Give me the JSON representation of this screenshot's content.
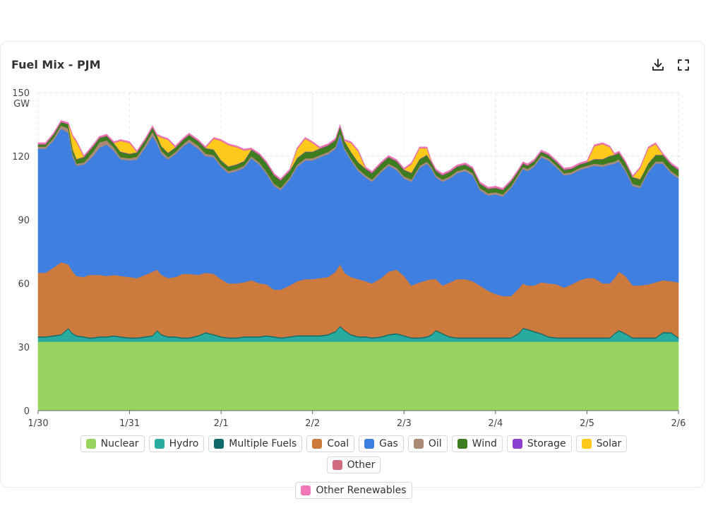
{
  "header": {
    "title": "Fuel Mix - PJM",
    "download_icon": "download-icon",
    "fullscreen_icon": "fullscreen-icon"
  },
  "chart_data": {
    "type": "area",
    "title": "Fuel Mix - PJM",
    "ylabel": "GW",
    "ylim": [
      0,
      150
    ],
    "yticks": [
      0,
      30,
      60,
      90,
      120,
      150
    ],
    "xlim": [
      0,
      7
    ],
    "xticks": [
      {
        "x": 0,
        "label": "1/30"
      },
      {
        "x": 1,
        "label": "1/31"
      },
      {
        "x": 2,
        "label": "2/1"
      },
      {
        "x": 3,
        "label": "2/2"
      },
      {
        "x": 4,
        "label": "2/3"
      },
      {
        "x": 5,
        "label": "2/4"
      },
      {
        "x": 6,
        "label": "2/5"
      },
      {
        "x": 7,
        "label": "2/6"
      }
    ],
    "grid": true,
    "stacked": true,
    "x": [
      0,
      0.08,
      0.17,
      0.25,
      0.33,
      0.38,
      0.42,
      0.5,
      0.55,
      0.6,
      0.67,
      0.75,
      0.83,
      0.9,
      1,
      1.08,
      1.17,
      1.25,
      1.3,
      1.35,
      1.42,
      1.5,
      1.58,
      1.65,
      1.75,
      1.83,
      1.92,
      2,
      2.08,
      2.17,
      2.25,
      2.33,
      2.42,
      2.5,
      2.58,
      2.65,
      2.75,
      2.83,
      2.92,
      3,
      3.08,
      3.17,
      3.25,
      3.3,
      3.35,
      3.42,
      3.5,
      3.58,
      3.65,
      3.75,
      3.83,
      3.92,
      4,
      4.08,
      4.17,
      4.25,
      4.3,
      4.35,
      4.42,
      4.5,
      4.58,
      4.67,
      4.75,
      4.83,
      4.92,
      5,
      5.08,
      5.17,
      5.25,
      5.3,
      5.35,
      5.42,
      5.5,
      5.58,
      5.67,
      5.75,
      5.83,
      5.92,
      6,
      6.08,
      6.17,
      6.25,
      6.3,
      6.35,
      6.42,
      6.5,
      6.58,
      6.67,
      6.75,
      6.83,
      6.92,
      7
    ],
    "series": [
      {
        "name": "Nuclear",
        "color": "#96d35f",
        "values": [
          32.5,
          32.5,
          32.5,
          32.5,
          32.5,
          32.5,
          32.5,
          32.5,
          32.5,
          32.5,
          32.5,
          32.5,
          32.5,
          32.5,
          32.5,
          32.5,
          32.5,
          32.5,
          32.5,
          32.5,
          32.5,
          32.5,
          32.5,
          32.5,
          32.5,
          32.5,
          32.5,
          32.5,
          32.5,
          32.5,
          32.5,
          32.5,
          32.5,
          32.5,
          32.5,
          32.5,
          32.5,
          32.5,
          32.5,
          32.5,
          32.5,
          32.5,
          32.5,
          32.5,
          32.5,
          32.5,
          32.5,
          32.5,
          32.5,
          32.5,
          32.5,
          32.5,
          32.5,
          32.5,
          32.5,
          32.5,
          32.5,
          32.5,
          32.5,
          32.5,
          32.5,
          32.5,
          32.5,
          32.5,
          32.5,
          32.5,
          32.5,
          32.5,
          32.5,
          32.5,
          32.5,
          32.5,
          32.5,
          32.5,
          32.5,
          32.5,
          32.5,
          32.5,
          32.5,
          32.5,
          32.5,
          32.5,
          32.5,
          32.5,
          32.5,
          32.5,
          32.5,
          32.5,
          32.5,
          32.5,
          32.5,
          32.5
        ]
      },
      {
        "name": "Hydro",
        "color": "#2aaba0",
        "values": [
          2,
          2,
          2.5,
          3,
          6,
          3.5,
          2.5,
          2,
          1.5,
          1.5,
          2,
          2,
          2.5,
          2,
          1.5,
          1.5,
          2,
          2.5,
          5,
          3,
          2,
          2,
          1.5,
          1.5,
          2.5,
          4,
          3,
          2,
          1.5,
          1.5,
          2,
          2,
          2,
          2.5,
          2,
          1.5,
          2,
          2.5,
          2.5,
          2.5,
          2.5,
          3,
          4.5,
          7,
          5,
          3,
          2,
          2,
          1.5,
          2,
          3,
          3.5,
          2.5,
          1.5,
          1.5,
          2,
          3,
          5,
          3.5,
          2,
          1.5,
          1.5,
          1.5,
          1.5,
          1.5,
          1.5,
          1.5,
          1.5,
          3.5,
          6,
          5.5,
          4.5,
          3.5,
          2,
          1.5,
          1.5,
          1.5,
          1.5,
          1.5,
          1.5,
          1.5,
          1.5,
          3.5,
          5,
          3.5,
          1.5,
          1.5,
          1.5,
          1.5,
          4,
          4,
          1.5
        ]
      },
      {
        "name": "Multiple Fuels",
        "color": "#0f6b6b",
        "values": [
          0.5,
          0.5,
          0.5,
          0.5,
          0.5,
          0.5,
          0.5,
          0.5,
          0.5,
          0.5,
          0.5,
          0.5,
          0.5,
          0.5,
          0.5,
          0.5,
          0.5,
          0.5,
          0.5,
          0.5,
          0.5,
          0.5,
          0.5,
          0.5,
          0.5,
          0.5,
          0.5,
          0.5,
          0.5,
          0.5,
          0.5,
          0.5,
          0.5,
          0.5,
          0.5,
          0.5,
          0.5,
          0.5,
          0.5,
          0.5,
          0.5,
          0.5,
          0.5,
          0.5,
          0.5,
          0.5,
          0.5,
          0.5,
          0.5,
          0.5,
          0.5,
          0.5,
          0.5,
          0.5,
          0.5,
          0.5,
          0.5,
          0.5,
          0.5,
          0.5,
          0.5,
          0.5,
          0.5,
          0.5,
          0.5,
          0.5,
          0.5,
          0.5,
          0.5,
          0.5,
          0.5,
          0.5,
          0.5,
          0.5,
          0.5,
          0.5,
          0.5,
          0.5,
          0.5,
          0.5,
          0.5,
          0.5,
          0.5,
          0.5,
          0.5,
          0.5,
          0.5,
          0.5,
          0.5,
          0.5,
          0.5,
          0.5
        ]
      },
      {
        "name": "Coal",
        "color": "#cc7a3e",
        "values": [
          30,
          30,
          32,
          34,
          30,
          29,
          28,
          28,
          29.5,
          29.5,
          29,
          28.5,
          28.5,
          28.5,
          28.5,
          28,
          29,
          30,
          28.5,
          28,
          27.5,
          28,
          30,
          30,
          28.5,
          28,
          28.5,
          27,
          25.5,
          25.5,
          25.5,
          26.5,
          25,
          24,
          22,
          22.5,
          24,
          25.5,
          26.5,
          26.5,
          27,
          27,
          28,
          29,
          27,
          27,
          27,
          26,
          25.5,
          27.5,
          29.5,
          30,
          28,
          24.5,
          26,
          26.5,
          26,
          24,
          22.5,
          25.5,
          27.5,
          27.5,
          26.5,
          24.5,
          22,
          20.5,
          19.5,
          19.5,
          21,
          21,
          20.5,
          21.5,
          24,
          25,
          25,
          23.5,
          25,
          27,
          28,
          28,
          25.5,
          25.5,
          26,
          27.5,
          27,
          24.5,
          24.5,
          25,
          26,
          24.5,
          24,
          26
        ]
      },
      {
        "name": "Gas",
        "color": "#3f7fe0",
        "values": [
          58.5,
          58.5,
          60,
          63,
          62,
          54,
          52,
          53,
          54,
          56,
          60,
          62,
          58.5,
          55,
          55,
          56,
          60,
          64,
          59.5,
          57,
          56,
          58,
          60,
          62,
          59.5,
          55,
          55,
          53,
          52,
          53,
          54,
          57.5,
          56,
          52,
          49,
          47,
          50,
          54,
          56,
          56,
          57,
          58,
          58,
          61,
          58,
          55,
          51,
          49,
          48,
          50,
          50,
          47,
          46,
          49,
          54,
          55,
          52,
          48,
          49,
          49,
          50,
          51,
          50,
          45,
          45,
          47,
          47,
          51,
          53,
          54,
          54,
          56,
          59,
          58,
          55,
          53,
          52,
          52,
          52,
          53,
          55,
          56,
          54,
          52,
          49.5,
          47,
          46,
          53,
          56,
          55,
          51,
          49
        ]
      },
      {
        "name": "Oil",
        "color": "#a98a78",
        "values": [
          1,
          1,
          1.2,
          1.5,
          2,
          1.5,
          1,
          1,
          1.5,
          2,
          2.5,
          2,
          1.5,
          1,
          1,
          1.2,
          1.5,
          2,
          1.5,
          1.5,
          1,
          1,
          1,
          1.5,
          1.5,
          1.2,
          1,
          1,
          1,
          1,
          1,
          1,
          1,
          1,
          1,
          1,
          1,
          1,
          1,
          1,
          1,
          1,
          1,
          1,
          1,
          1,
          1,
          1,
          1,
          1,
          1,
          1,
          1,
          1,
          1,
          1,
          1,
          1,
          1,
          1,
          1,
          1,
          1,
          1,
          1,
          1,
          1,
          1,
          1,
          1,
          1,
          1,
          1,
          1,
          1,
          1,
          1,
          1,
          1,
          1,
          1,
          1,
          1,
          1,
          1,
          1,
          1,
          1,
          1,
          1,
          1,
          1
        ]
      },
      {
        "name": "Wind",
        "color": "#3d7d1f",
        "values": [
          1,
          1,
          1.5,
          1.5,
          2,
          2,
          2,
          2.5,
          2.5,
          2.5,
          2,
          2,
          2,
          2.5,
          2,
          2,
          2,
          2,
          2,
          2,
          2,
          2,
          2,
          2,
          2,
          2.5,
          2.5,
          2,
          2,
          2,
          2,
          3,
          3.5,
          4,
          4,
          3.5,
          3,
          3,
          3,
          3,
          3,
          3,
          3,
          3,
          3,
          3,
          3,
          3,
          3,
          3,
          3,
          3,
          3,
          3,
          3,
          3,
          2,
          2,
          2,
          2,
          2,
          2,
          2,
          2,
          2,
          2,
          2,
          2,
          1.5,
          1.5,
          1.5,
          1.5,
          1.5,
          1.5,
          1.5,
          1.5,
          1.5,
          1.5,
          1.5,
          2,
          2.5,
          3,
          3,
          3,
          3,
          3,
          3,
          3,
          3,
          3,
          3,
          3
        ]
      },
      {
        "name": "Storage",
        "color": "#8b3fd0",
        "values": [
          0.2,
          0.2,
          0.2,
          0.2,
          0.2,
          0.2,
          0.2,
          0.2,
          0.2,
          0.2,
          0.2,
          0.2,
          0.2,
          0.2,
          0.2,
          0.2,
          0.2,
          0.2,
          0.2,
          0.2,
          0.2,
          0.2,
          0.2,
          0.2,
          0.2,
          0.2,
          0.2,
          0.2,
          0.2,
          0.2,
          0.2,
          0.2,
          0.2,
          0.2,
          0.2,
          0.2,
          0.2,
          0.2,
          0.2,
          0.2,
          0.2,
          0.2,
          0.2,
          0.2,
          0.2,
          0.2,
          0.2,
          0.2,
          0.2,
          0.2,
          0.2,
          0.2,
          0.2,
          0.2,
          0.2,
          0.2,
          0.2,
          0.2,
          0.2,
          0.2,
          0.2,
          0.2,
          0.2,
          0.2,
          0.2,
          0.2,
          0.2,
          0.2,
          0.2,
          0.2,
          0.2,
          0.2,
          0.2,
          0.2,
          0.2,
          0.2,
          0.2,
          0.2,
          0.2,
          0.2,
          0.2,
          0.2,
          0.2,
          0.2,
          0.2,
          0.2,
          0.2,
          0.2,
          0.2,
          0.2,
          0.2,
          0.2
        ]
      },
      {
        "name": "Solar",
        "color": "#fdca1c",
        "values": [
          0,
          0,
          0,
          0,
          0,
          6,
          8,
          0,
          0,
          0,
          0,
          0,
          0,
          5,
          5,
          0,
          0,
          0,
          0,
          4,
          6,
          0,
          0,
          0,
          0,
          0,
          5,
          9,
          10,
          8,
          5,
          0,
          0,
          0,
          0,
          0,
          0,
          4,
          6,
          4,
          0,
          0,
          0,
          0,
          0,
          4,
          5,
          0,
          0,
          0,
          0,
          0,
          0,
          4,
          5,
          3,
          0,
          0,
          0,
          0,
          0,
          0,
          0,
          0,
          0,
          0,
          0,
          0,
          0,
          0,
          0,
          0,
          0,
          0,
          0,
          0,
          0,
          0,
          0,
          6,
          7,
          4,
          0,
          0,
          0,
          0,
          5,
          7,
          5,
          0,
          0,
          0
        ]
      },
      {
        "name": "Other",
        "color": "#d06a7e",
        "values": [
          0.2,
          0.2,
          0.2,
          0.2,
          0.2,
          0.2,
          0.2,
          0.2,
          0.2,
          0.2,
          0.2,
          0.2,
          0.2,
          0.2,
          0.2,
          0.2,
          0.2,
          0.2,
          0.2,
          0.2,
          0.2,
          0.2,
          0.2,
          0.2,
          0.2,
          0.2,
          0.2,
          0.2,
          0.2,
          0.2,
          0.2,
          0.2,
          0.2,
          0.2,
          0.2,
          0.2,
          0.2,
          0.2,
          0.2,
          0.2,
          0.2,
          0.2,
          0.2,
          0.2,
          0.2,
          0.2,
          0.2,
          0.2,
          0.2,
          0.2,
          0.2,
          0.2,
          0.2,
          0.2,
          0.2,
          0.2,
          0.2,
          0.2,
          0.2,
          0.2,
          0.2,
          0.2,
          0.2,
          0.2,
          0.2,
          0.2,
          0.2,
          0.2,
          0.2,
          0.2,
          0.2,
          0.2,
          0.2,
          0.2,
          0.2,
          0.2,
          0.2,
          0.2,
          0.2,
          0.2,
          0.2,
          0.2,
          0.2,
          0.2,
          0.2,
          0.2,
          0.2,
          0.2,
          0.2,
          0.2,
          0.2,
          0.2
        ]
      },
      {
        "name": "Other Renewables",
        "color": "#ee78b8",
        "values": [
          0.5,
          0.5,
          0.5,
          0.5,
          0.5,
          0.5,
          0.5,
          0.5,
          0.5,
          0.5,
          0.5,
          0.5,
          0.5,
          0.5,
          0.5,
          0.5,
          0.5,
          0.5,
          0.5,
          0.5,
          0.5,
          0.5,
          0.5,
          0.5,
          0.5,
          0.5,
          0.5,
          0.5,
          0.5,
          0.5,
          0.5,
          0.5,
          0.5,
          0.5,
          0.5,
          0.5,
          0.5,
          0.5,
          0.5,
          0.5,
          0.5,
          0.5,
          0.5,
          0.5,
          0.5,
          0.5,
          0.5,
          0.5,
          0.5,
          0.5,
          0.5,
          0.5,
          0.5,
          0.5,
          0.5,
          0.5,
          0.5,
          0.5,
          0.5,
          0.5,
          0.5,
          0.5,
          0.5,
          0.5,
          0.5,
          0.5,
          0.5,
          0.5,
          0.5,
          0.5,
          0.5,
          0.5,
          0.5,
          0.5,
          0.5,
          0.5,
          0.5,
          0.5,
          0.5,
          0.5,
          0.5,
          0.5,
          0.5,
          0.5,
          0.5,
          0.5,
          0.5,
          0.5,
          0.5,
          0.5,
          0.5,
          0.5
        ]
      }
    ],
    "legend": [
      "Nuclear",
      "Hydro",
      "Multiple Fuels",
      "Coal",
      "Gas",
      "Oil",
      "Wind",
      "Storage",
      "Solar",
      "Other",
      "Other Renewables"
    ],
    "legend_position": "bottom"
  }
}
